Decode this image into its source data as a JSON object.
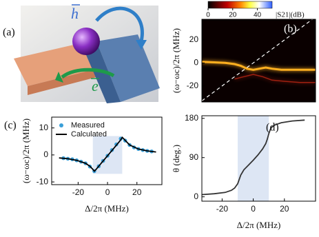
{
  "illustration": {
    "label": "(a)",
    "h": "h",
    "e": "e"
  },
  "chart_data": [
    {
      "type": "heatmap",
      "label": "(b)",
      "y_label": "(ω−ωc)/2π (MHz)",
      "xlim": [
        -33,
        40
      ],
      "ylim": [
        -34,
        38
      ],
      "yticks": [
        20,
        0,
        -20
      ],
      "diagonal": true,
      "colorbar": {
        "label": "|S21|(dB)",
        "clim": [
          0,
          52
        ],
        "ticks": [
          0,
          20,
          40
        ]
      },
      "bands": [
        {
          "color": "#ffb020",
          "x": [
            -33,
            -25,
            -18,
            -12,
            -8,
            -4,
            0,
            4,
            8,
            12,
            18,
            25,
            33,
            40
          ],
          "values": [
            1,
            0.5,
            0,
            -1,
            -2.5,
            -5,
            -6,
            -5,
            -4,
            -5,
            -6,
            -6,
            -6,
            -6
          ]
        },
        {
          "color": "#a02010",
          "x": [
            -12,
            -6,
            0,
            6,
            12,
            20,
            30,
            40
          ],
          "values": [
            -14,
            -12,
            -10,
            -12,
            -15,
            -16,
            -17,
            -17
          ]
        }
      ]
    },
    {
      "type": "line",
      "label": "(c)",
      "x_label": "Δ/2π (MHz)",
      "y_label": "(ω−ωc)/2π (MHz)",
      "xlim": [
        -38,
        37
      ],
      "ylim": [
        -11,
        14
      ],
      "xticks": [
        -20,
        0,
        20
      ],
      "yticks": [
        10,
        0,
        -10
      ],
      "shade": {
        "x": [
          -10,
          10
        ],
        "y": [
          -7,
          7
        ],
        "color": "#dde6f4"
      },
      "legend": "upper left",
      "series": [
        {
          "name": "Measured",
          "style": "markers",
          "color": "#3a9fd8",
          "x": [
            -30,
            -27,
            -24,
            -21,
            -18,
            -15,
            -12,
            -9,
            -6,
            -3,
            0,
            3,
            6,
            9,
            12,
            15,
            18,
            21,
            24,
            27,
            30
          ],
          "values": [
            -1.2,
            -1.4,
            -1.6,
            -2.0,
            -2.5,
            -3.1,
            -4.3,
            -6.0,
            -4.2,
            -2.2,
            -0.3,
            1.8,
            3.9,
            6.0,
            5.3,
            3.7,
            2.8,
            2.2,
            1.8,
            1.5,
            1.3
          ]
        },
        {
          "name": "Calculated",
          "style": "line",
          "color": "#000000",
          "x": [
            -33,
            -27,
            -21,
            -15,
            -12,
            -10,
            -9,
            -8,
            -4,
            0,
            4,
            8,
            9,
            10,
            11,
            12,
            15,
            21,
            27,
            33
          ],
          "values": [
            -1.1,
            -1.4,
            -2.0,
            -3.1,
            -4.2,
            -5.3,
            -6.0,
            -5.5,
            -2.9,
            -0.3,
            2.3,
            4.9,
            5.6,
            6.5,
            6.0,
            5.4,
            3.7,
            2.2,
            1.5,
            1.1
          ]
        }
      ]
    },
    {
      "type": "line",
      "label": "(d)",
      "x_label": "Δ/2π (MHz)",
      "y_label": "θ (deg.)",
      "xlim": [
        -33,
        40
      ],
      "ylim": [
        -10,
        186
      ],
      "xticks": [
        -20,
        0,
        20
      ],
      "yticks": [
        0,
        90,
        180
      ],
      "shade": {
        "x": [
          -10,
          10
        ],
        "color": "#dde6f4"
      },
      "series": [
        {
          "style": "line",
          "color": "#333333",
          "x": [
            -33,
            -25,
            -18,
            -14,
            -12,
            -10,
            -9,
            -8,
            -6,
            -3,
            0,
            3,
            6,
            8,
            9,
            10,
            11,
            12,
            14,
            18,
            25,
            33
          ],
          "values": [
            5,
            7,
            10,
            15,
            20,
            30,
            40,
            50,
            62,
            73,
            84,
            96,
            110,
            122,
            132,
            145,
            155,
            160,
            165,
            170,
            174,
            176
          ]
        }
      ]
    }
  ]
}
